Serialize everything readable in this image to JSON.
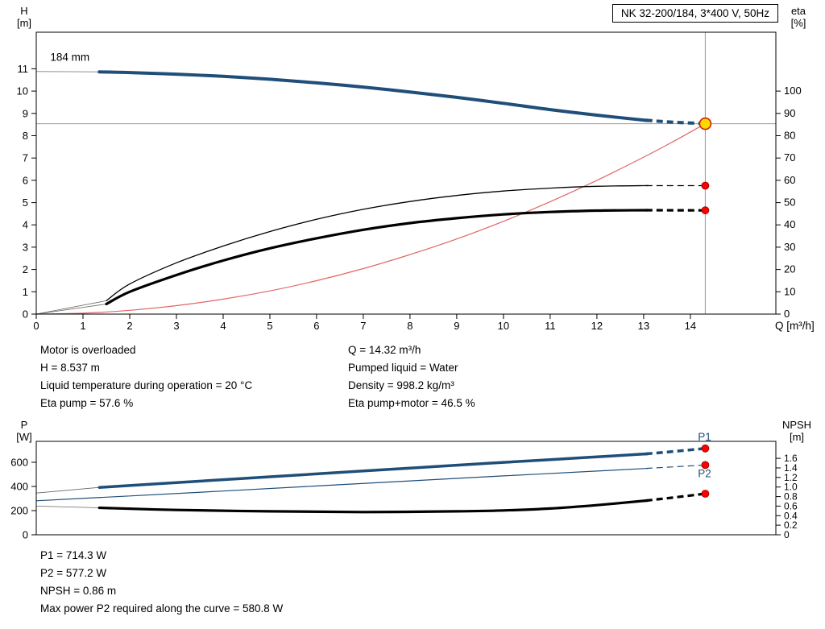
{
  "title_box": {
    "text": "NK 32-200/184, 3*400 V, 50Hz"
  },
  "axes_headers": {
    "top_left_line1": "H",
    "top_left_line2": "[m]",
    "top_right_line1": "eta",
    "top_right_line2": "[%]",
    "x_label": "Q [m³/h]",
    "bottom_left_line1": "P",
    "bottom_left_line2": "[W]",
    "bottom_right_line1": "NPSH",
    "bottom_right_line2": "[m]"
  },
  "info_block": {
    "left": [
      "Motor is overloaded",
      "H = 8.537 m",
      "Liquid temperature during operation = 20 °C",
      "Eta pump = 57.6 %"
    ],
    "right": [
      "Q = 14.32 m³/h",
      "Pumped liquid = Water",
      "Density = 998.2 kg/m³",
      "Eta pump+motor = 46.5 %"
    ]
  },
  "power_block": [
    "P1 = 714.3 W",
    "P2 = 577.2 W",
    "NPSH = 0.86 m",
    "Max power P2 required along the curve = 580.8 W"
  ],
  "colors": {
    "curve_blue": "#1f4e79",
    "curve_red": "#e06666",
    "dot_red": "#ff0000",
    "duty_yellow": "#ffd800",
    "guide_gray": "#999999"
  },
  "chart_data": [
    {
      "id": "hq",
      "type": "line",
      "title": "NK 32-200/184, 3*400 V, 50Hz",
      "x_axis": {
        "label": "Q [m³/h]",
        "min": 0,
        "max": 15.83,
        "ticks": [
          [
            0,
            "0"
          ],
          [
            1,
            "1"
          ],
          [
            2,
            "2"
          ],
          [
            3,
            "3"
          ],
          [
            4,
            "4"
          ],
          [
            5,
            "5"
          ],
          [
            6,
            "6"
          ],
          [
            7,
            "7"
          ],
          [
            8,
            "8"
          ],
          [
            9,
            "9"
          ],
          [
            10,
            "10"
          ],
          [
            11,
            "11"
          ],
          [
            12,
            "12"
          ],
          [
            13,
            "13"
          ],
          [
            14,
            "14"
          ]
        ]
      },
      "y_left": {
        "label": "H [m]",
        "min": 0,
        "max": 12.64,
        "ticks": [
          [
            0,
            "0"
          ],
          [
            1,
            "1"
          ],
          [
            2,
            "2"
          ],
          [
            3,
            "3"
          ],
          [
            4,
            "4"
          ],
          [
            5,
            "5"
          ],
          [
            6,
            "6"
          ],
          [
            7,
            "7"
          ],
          [
            8,
            "8"
          ],
          [
            9,
            "9"
          ],
          [
            10,
            "10"
          ],
          [
            11,
            "11"
          ]
        ]
      },
      "y_right": {
        "label": "eta [%]",
        "min": 0,
        "max": 126.4,
        "ticks": [
          [
            0,
            "0"
          ],
          [
            10,
            "10"
          ],
          [
            20,
            "20"
          ],
          [
            30,
            "30"
          ],
          [
            40,
            "40"
          ],
          [
            50,
            "50"
          ],
          [
            60,
            "60"
          ],
          [
            70,
            "70"
          ],
          [
            80,
            "80"
          ],
          [
            90,
            "90"
          ],
          [
            100,
            "100"
          ]
        ]
      },
      "guides": {
        "h_value": 8.537,
        "q_value": 14.32
      },
      "series": [
        {
          "name": "pump-curve-lead",
          "color": "#909090",
          "width": 1,
          "axis": "left",
          "points": [
            [
              0,
              10.88
            ],
            [
              1.35,
              10.86
            ]
          ]
        },
        {
          "name": "system-curve",
          "color": "#e06666",
          "width": 1.2,
          "axis": "left",
          "points": [
            [
              0,
              0
            ],
            [
              1,
              0.04
            ],
            [
              2,
              0.17
            ],
            [
              3,
              0.38
            ],
            [
              4,
              0.67
            ],
            [
              5,
              1.04
            ],
            [
              6,
              1.5
            ],
            [
              7,
              2.04
            ],
            [
              8,
              2.67
            ],
            [
              9,
              3.37
            ],
            [
              10,
              4.16
            ],
            [
              11,
              5.04
            ],
            [
              12,
              6.0
            ],
            [
              13,
              7.04
            ],
            [
              13.6,
              7.7
            ],
            [
              14.32,
              8.54
            ]
          ]
        },
        {
          "name": "eta-pump-lead",
          "color": "#666666",
          "width": 0.8,
          "axis": "right",
          "points": [
            [
              0,
              0
            ],
            [
              1.5,
              6
            ]
          ]
        },
        {
          "name": "eta-pump-motor-lead",
          "color": "#666666",
          "width": 0.8,
          "axis": "right",
          "points": [
            [
              0,
              0
            ],
            [
              1.5,
              4.5
            ]
          ]
        },
        {
          "name": "eta-pump-curve",
          "color": "#000000",
          "width": 1.3,
          "axis": "right",
          "dash_from": 13.05,
          "points": [
            [
              1.5,
              6
            ],
            [
              2,
              13.5
            ],
            [
              3,
              23
            ],
            [
              4,
              30.5
            ],
            [
              5,
              37
            ],
            [
              6,
              42.5
            ],
            [
              7,
              47
            ],
            [
              8,
              50.5
            ],
            [
              9,
              53.2
            ],
            [
              10,
              55.2
            ],
            [
              11,
              56.5
            ],
            [
              12,
              57.3
            ],
            [
              13,
              57.6
            ],
            [
              14.32,
              57.6
            ]
          ]
        },
        {
          "name": "eta-pump-motor-curve",
          "color": "#000000",
          "width": 3.2,
          "axis": "right",
          "dash_from": 13.05,
          "points": [
            [
              1.5,
              4.5
            ],
            [
              2,
              10
            ],
            [
              3,
              17.5
            ],
            [
              4,
              24
            ],
            [
              5,
              29.5
            ],
            [
              6,
              34
            ],
            [
              7,
              37.8
            ],
            [
              8,
              40.8
            ],
            [
              9,
              43
            ],
            [
              10,
              44.7
            ],
            [
              11,
              45.8
            ],
            [
              12,
              46.4
            ],
            [
              13,
              46.6
            ],
            [
              14.32,
              46.5
            ]
          ]
        },
        {
          "name": "pump-curve-184mm",
          "color": "#1f4e79",
          "width": 4,
          "axis": "left",
          "dash_from": 13.05,
          "points": [
            [
              1.35,
              10.86
            ],
            [
              2,
              10.83
            ],
            [
              3,
              10.76
            ],
            [
              4,
              10.66
            ],
            [
              5,
              10.53
            ],
            [
              6,
              10.37
            ],
            [
              7,
              10.18
            ],
            [
              8,
              9.96
            ],
            [
              9,
              9.72
            ],
            [
              10,
              9.45
            ],
            [
              11,
              9.17
            ],
            [
              12,
              8.92
            ],
            [
              13,
              8.7
            ],
            [
              13.6,
              8.61
            ],
            [
              14.32,
              8.54
            ]
          ]
        }
      ],
      "duty_marker": {
        "q": 14.32,
        "v": 8.537,
        "axis": "left"
      },
      "dots": [
        {
          "q": 14.32,
          "v": 57.6,
          "axis": "right"
        },
        {
          "q": 14.32,
          "v": 46.5,
          "axis": "right"
        }
      ],
      "annotations": [
        {
          "text": "184 mm",
          "q": 0.3,
          "v": 11.35,
          "axis": "left",
          "color": "#000000",
          "anchor": "start",
          "size": 13.5,
          "name": "impeller-diameter-label"
        }
      ]
    },
    {
      "id": "power-npsh",
      "type": "line",
      "x_axis": {
        "label": "",
        "min": 0,
        "max": 15.83,
        "ticks": []
      },
      "y_left": {
        "label": "P [W]",
        "min": 0,
        "max": 773,
        "ticks": [
          [
            0,
            "0"
          ],
          [
            200,
            "200"
          ],
          [
            400,
            "400"
          ],
          [
            600,
            "600"
          ]
        ]
      },
      "y_right": {
        "label": "NPSH [m]",
        "min": 0,
        "max": 1.956,
        "ticks": [
          [
            0,
            "0"
          ],
          [
            0.2,
            "0.2"
          ],
          [
            0.4,
            "0.4"
          ],
          [
            0.6,
            "0.6"
          ],
          [
            0.8,
            "0.8"
          ],
          [
            1.0,
            "1.0"
          ],
          [
            1.2,
            "1.2"
          ],
          [
            1.4,
            "1.4"
          ],
          [
            1.6,
            "1.6"
          ]
        ]
      },
      "series": [
        {
          "name": "p1-lead",
          "color": "#666666",
          "width": 0.8,
          "axis": "left",
          "points": [
            [
              0,
              345
            ],
            [
              1.35,
              392
            ]
          ]
        },
        {
          "name": "npsh-lead",
          "color": "#666666",
          "width": 0.8,
          "axis": "right",
          "points": [
            [
              0,
              0.6
            ],
            [
              1.35,
              0.565
            ]
          ]
        },
        {
          "name": "p2-curve",
          "color": "#1f4e79",
          "width": 1.2,
          "axis": "left",
          "dash_from": 13.05,
          "points": [
            [
              0,
              281
            ],
            [
              2,
              321
            ],
            [
              4,
              362
            ],
            [
              6,
              404
            ],
            [
              8,
              446
            ],
            [
              10,
              487
            ],
            [
              12,
              527
            ],
            [
              13,
              548
            ],
            [
              13.6,
              561
            ],
            [
              14.32,
              577.2
            ]
          ]
        },
        {
          "name": "p1-curve",
          "color": "#1f4e79",
          "width": 3.5,
          "axis": "left",
          "dash_from": 13.05,
          "points": [
            [
              1.35,
              392
            ],
            [
              3,
              432
            ],
            [
              5,
              480
            ],
            [
              7,
              528
            ],
            [
              9,
              576
            ],
            [
              11,
              622
            ],
            [
              12,
              645
            ],
            [
              13,
              668
            ],
            [
              13.6,
              688
            ],
            [
              14.32,
              714.3
            ]
          ]
        },
        {
          "name": "npsh-curve",
          "color": "#000000",
          "width": 3.2,
          "axis": "right",
          "dash_from": 13.05,
          "points": [
            [
              1.35,
              0.565
            ],
            [
              3,
              0.52
            ],
            [
              5,
              0.49
            ],
            [
              7,
              0.475
            ],
            [
              9,
              0.49
            ],
            [
              10,
              0.51
            ],
            [
              11,
              0.55
            ],
            [
              12,
              0.62
            ],
            [
              13,
              0.71
            ],
            [
              13.6,
              0.775
            ],
            [
              14.32,
              0.86
            ]
          ]
        }
      ],
      "dots": [
        {
          "q": 14.32,
          "v": 714.3,
          "axis": "left"
        },
        {
          "q": 14.32,
          "v": 577.2,
          "axis": "left"
        },
        {
          "q": 14.32,
          "v": 0.86,
          "axis": "right"
        }
      ],
      "annotations": [
        {
          "text": "P1",
          "q": 14.16,
          "v": 780,
          "axis": "left",
          "color": "#1f4e79",
          "anchor": "start",
          "size": 13.5,
          "name": "p1-curve-label"
        },
        {
          "text": "P2",
          "q": 14.16,
          "v": 475,
          "axis": "left",
          "color": "#1f4e79",
          "anchor": "start",
          "size": 13.5,
          "name": "p2-curve-label"
        }
      ]
    }
  ]
}
